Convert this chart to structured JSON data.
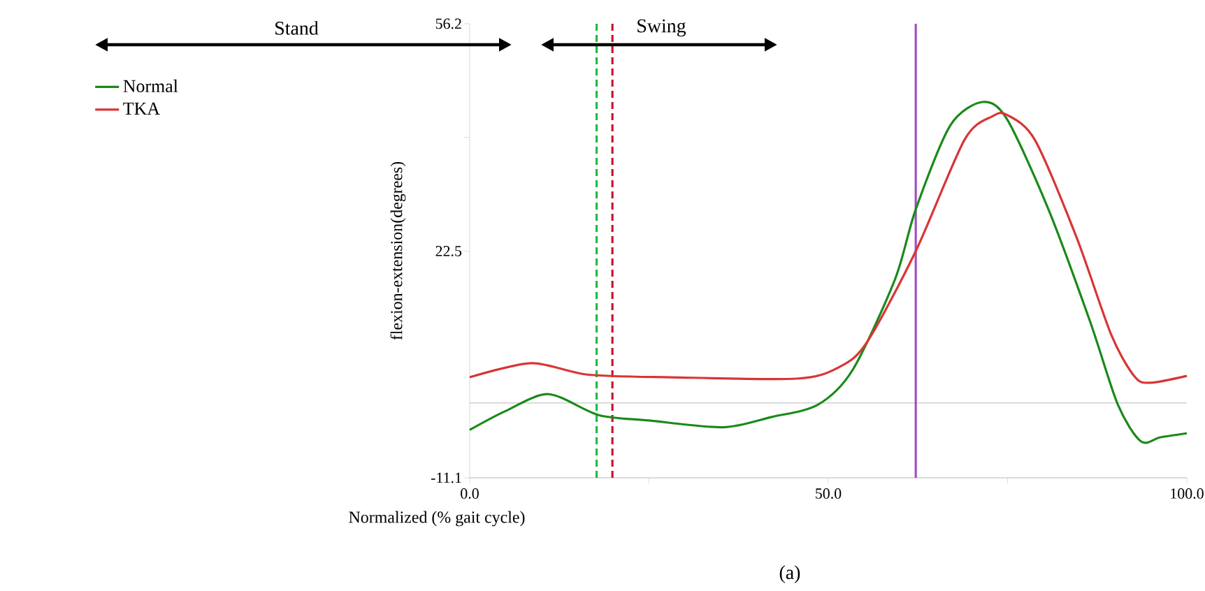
{
  "chart_data": {
    "type": "line",
    "xlabel": "Normalized (% gait cycle)",
    "ylabel": "flexion-extension(degrees)",
    "annotations": [
      "Stand",
      "Swing",
      "(a)"
    ],
    "xlim": [
      0,
      100
    ],
    "ylim": [
      -11.1,
      56.2
    ],
    "xticks": [
      {
        "value": 0,
        "label": "0.0"
      },
      {
        "value": 25,
        "label": null
      },
      {
        "value": 50,
        "label": "50.0"
      },
      {
        "value": 75,
        "label": null
      },
      {
        "value": 100,
        "label": "100.0"
      }
    ],
    "yticks": [
      -11.1,
      22.5,
      {
        "value": 39.35,
        "label": null
      },
      56.2
    ],
    "legend": "top left",
    "series": [
      {
        "name": "Normal",
        "color": "#1a8a1a",
        "x": [
          0,
          5,
          11,
          18,
          25,
          35.3,
          42,
          48.5,
          53.4,
          59.3,
          62.2,
          67,
          71.5,
          74.9,
          80.7,
          86.5,
          90.4,
          93.6,
          96.3,
          100
        ],
        "values": [
          -4.0,
          -1.2,
          1.3,
          -1.8,
          -2.6,
          -3.6,
          -2.1,
          -0.3,
          4.9,
          18.3,
          28.7,
          41.1,
          44.6,
          42.1,
          28.7,
          12.1,
          -0.3,
          -5.7,
          -5.1,
          -4.5
        ]
      },
      {
        "name": "TKA",
        "color": "#d93535",
        "x": [
          0,
          8.6,
          16.4,
          28,
          45.6,
          51.5,
          55.4,
          62.2,
          69,
          72.9,
          74.9,
          78.8,
          84.6,
          89.5,
          92.8,
          95,
          100
        ],
        "values": [
          3.8,
          5.9,
          4.2,
          3.8,
          3.6,
          5.3,
          9.0,
          22.5,
          39.0,
          42.5,
          42.7,
          39.0,
          24.6,
          10.0,
          3.8,
          3.0,
          4.0
        ]
      }
    ],
    "ref_lines": [
      {
        "axis": "y",
        "value": 0,
        "color": "#d0d0d0",
        "line_style": "solid"
      },
      {
        "axis": "x",
        "value": 17.7,
        "color": "#22bb44",
        "line_style": "dashed"
      },
      {
        "axis": "x",
        "value": 19.9,
        "color": "#cc1133",
        "line_style": "dashed"
      },
      {
        "axis": "x",
        "value": 62.2,
        "color": "#a050c0",
        "line_style": "solid"
      }
    ]
  }
}
